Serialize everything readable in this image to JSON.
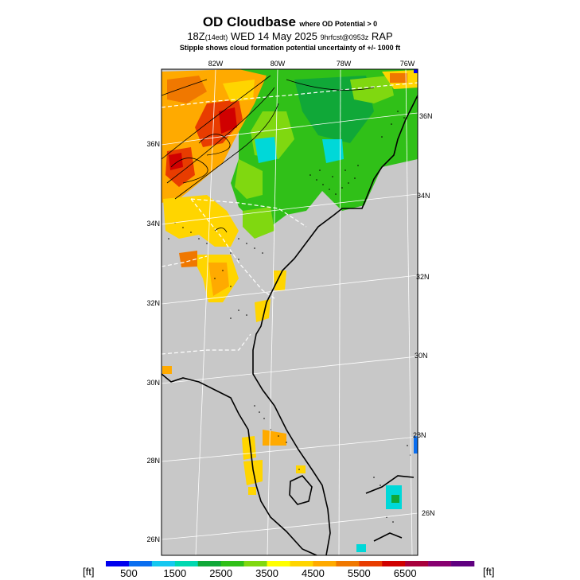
{
  "title": {
    "main": "OD Cloudbase",
    "qualifier": "where OD Potential > 0",
    "line2_main": "18Z",
    "line2_local": "(14edt)",
    "line2_date": "WED 14 May 2025",
    "line2_fcst": "9hrfcst@0953z",
    "line2_model": "RAP",
    "line3": "Stipple shows cloud formation potential uncertainty of +/-  1000 ft"
  },
  "axes": {
    "lon_top": [
      "82W",
      "80W",
      "78W",
      "76W"
    ],
    "lat_left": [
      "36N",
      "34N",
      "32N",
      "30N",
      "28N",
      "26N"
    ],
    "lat_right": [
      "36N",
      "34N",
      "32N",
      "30N",
      "28N",
      "26N"
    ]
  },
  "colorbar": {
    "unit_left": "[ft]",
    "unit_right": "[ft]",
    "labels": [
      "500",
      "1500",
      "2500",
      "3500",
      "4500",
      "5500",
      "6500"
    ],
    "colors": [
      "#0000ee",
      "#0a6ef0",
      "#16c8f0",
      "#00d8b0",
      "#10a838",
      "#30c018",
      "#80d810",
      "#ffff00",
      "#ffd500",
      "#ffaa00",
      "#f07800",
      "#e83c00",
      "#d00000",
      "#a8003c",
      "#880070",
      "#600080"
    ]
  },
  "map": {
    "background": "#c8c8c8"
  }
}
